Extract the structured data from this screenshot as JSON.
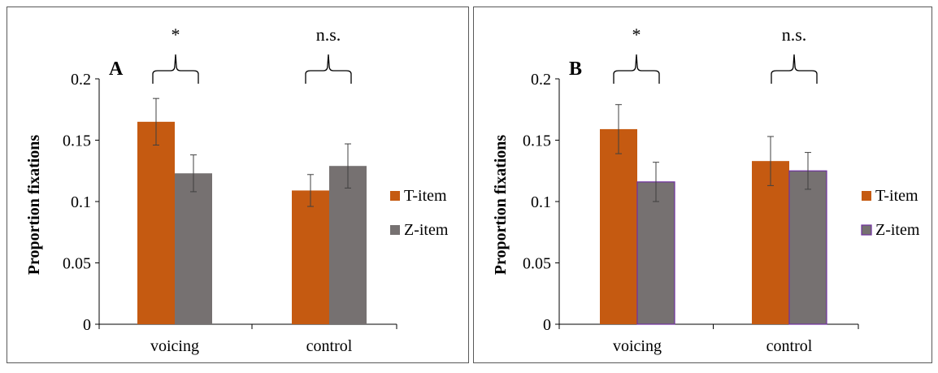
{
  "chart_data": [
    {
      "type": "bar",
      "panel_label": "A",
      "categories": [
        "voicing",
        "control"
      ],
      "series": [
        {
          "name": "T-item",
          "values": [
            0.165,
            0.109
          ],
          "errors": [
            0.019,
            0.013
          ]
        },
        {
          "name": "Z-item",
          "values": [
            0.123,
            0.129
          ],
          "errors": [
            0.015,
            0.018
          ]
        }
      ],
      "ylabel": "Proportion fixations",
      "ylim": [
        0,
        0.2
      ],
      "yticks": [
        0,
        0.05,
        0.1,
        0.15,
        0.2
      ],
      "ytick_labels": [
        "0",
        "0.05",
        "0.1",
        "0.15",
        "0.2"
      ],
      "significance": [
        "*",
        "n.s."
      ],
      "legend_position": "right",
      "grid": false
    },
    {
      "type": "bar",
      "panel_label": "B",
      "categories": [
        "voicing",
        "control"
      ],
      "series": [
        {
          "name": "T-item",
          "values": [
            0.159,
            0.133
          ],
          "errors": [
            0.02,
            0.02
          ]
        },
        {
          "name": "Z-item",
          "values": [
            0.116,
            0.125
          ],
          "errors": [
            0.016,
            0.015
          ]
        }
      ],
      "ylabel": "Proportion fixations",
      "ylim": [
        0,
        0.2
      ],
      "yticks": [
        0,
        0.05,
        0.1,
        0.15,
        0.2
      ],
      "ytick_labels": [
        "0",
        "0.05",
        "0.1",
        "0.15",
        "0.2"
      ],
      "significance": [
        "*",
        "n.s."
      ],
      "legend_position": "right",
      "grid": false
    }
  ],
  "colors": {
    "t_item": "#C55A11",
    "z_item": "#767171",
    "z_item_outline_b": "#7030A0",
    "axis": "#000000",
    "frame": "#595959"
  }
}
